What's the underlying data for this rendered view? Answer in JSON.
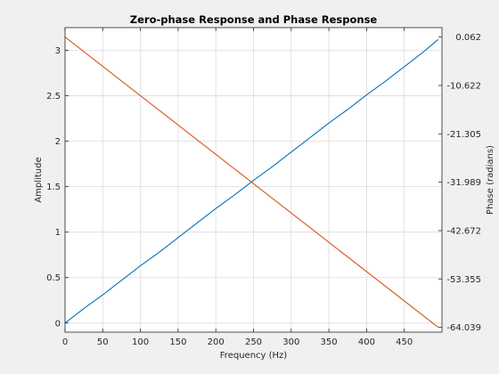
{
  "figure": {
    "background_color": "#f0f0f0",
    "axes_background_color": "#ffffff"
  },
  "chart_data": {
    "type": "line",
    "title": "Zero-phase Response and Phase Response",
    "xlabel": "Frequency (Hz)",
    "ylabel_left": "Amplitude",
    "ylabel_right": "Phase (radians)",
    "xlim": [
      0,
      500
    ],
    "ylim_left": [
      -0.1,
      3.25
    ],
    "ylim_right": [
      -65.1,
      2.15
    ],
    "x_ticks": [
      0,
      50,
      100,
      150,
      200,
      250,
      300,
      350,
      400,
      450
    ],
    "x_tick_labels": [
      "0",
      "50",
      "100",
      "150",
      "200",
      "250",
      "300",
      "350",
      "400",
      "450"
    ],
    "y_left_ticks": [
      0,
      0.5,
      1,
      1.5,
      2,
      2.5,
      3
    ],
    "y_left_tick_labels": [
      "0",
      "0.5",
      "1",
      "1.5",
      "2",
      "2.5",
      "3"
    ],
    "y_right_ticks": [
      -64.039,
      -53.355,
      -42.672,
      -31.989,
      -21.305,
      -10.622,
      0.062
    ],
    "y_right_tick_labels": [
      "-64.039",
      "-53.355",
      "-42.672",
      "-31.989",
      "-21.305",
      "-10.622",
      "0.062"
    ],
    "grid": true,
    "series": [
      {
        "axis": "left",
        "color": "#0072bd",
        "x": [
          0,
          25,
          50,
          75,
          100,
          125,
          150,
          175,
          200,
          225,
          250,
          275,
          300,
          325,
          350,
          375,
          400,
          425,
          450,
          475,
          495
        ],
        "y": [
          0.0,
          0.16,
          0.31,
          0.47,
          0.63,
          0.78,
          0.94,
          1.1,
          1.26,
          1.41,
          1.57,
          1.72,
          1.88,
          2.04,
          2.2,
          2.35,
          2.51,
          2.66,
          2.82,
          2.98,
          3.12
        ]
      },
      {
        "axis": "right",
        "color": "#d95319",
        "x": [
          0,
          495
        ],
        "y": [
          0.062,
          -64.039
        ]
      }
    ]
  }
}
